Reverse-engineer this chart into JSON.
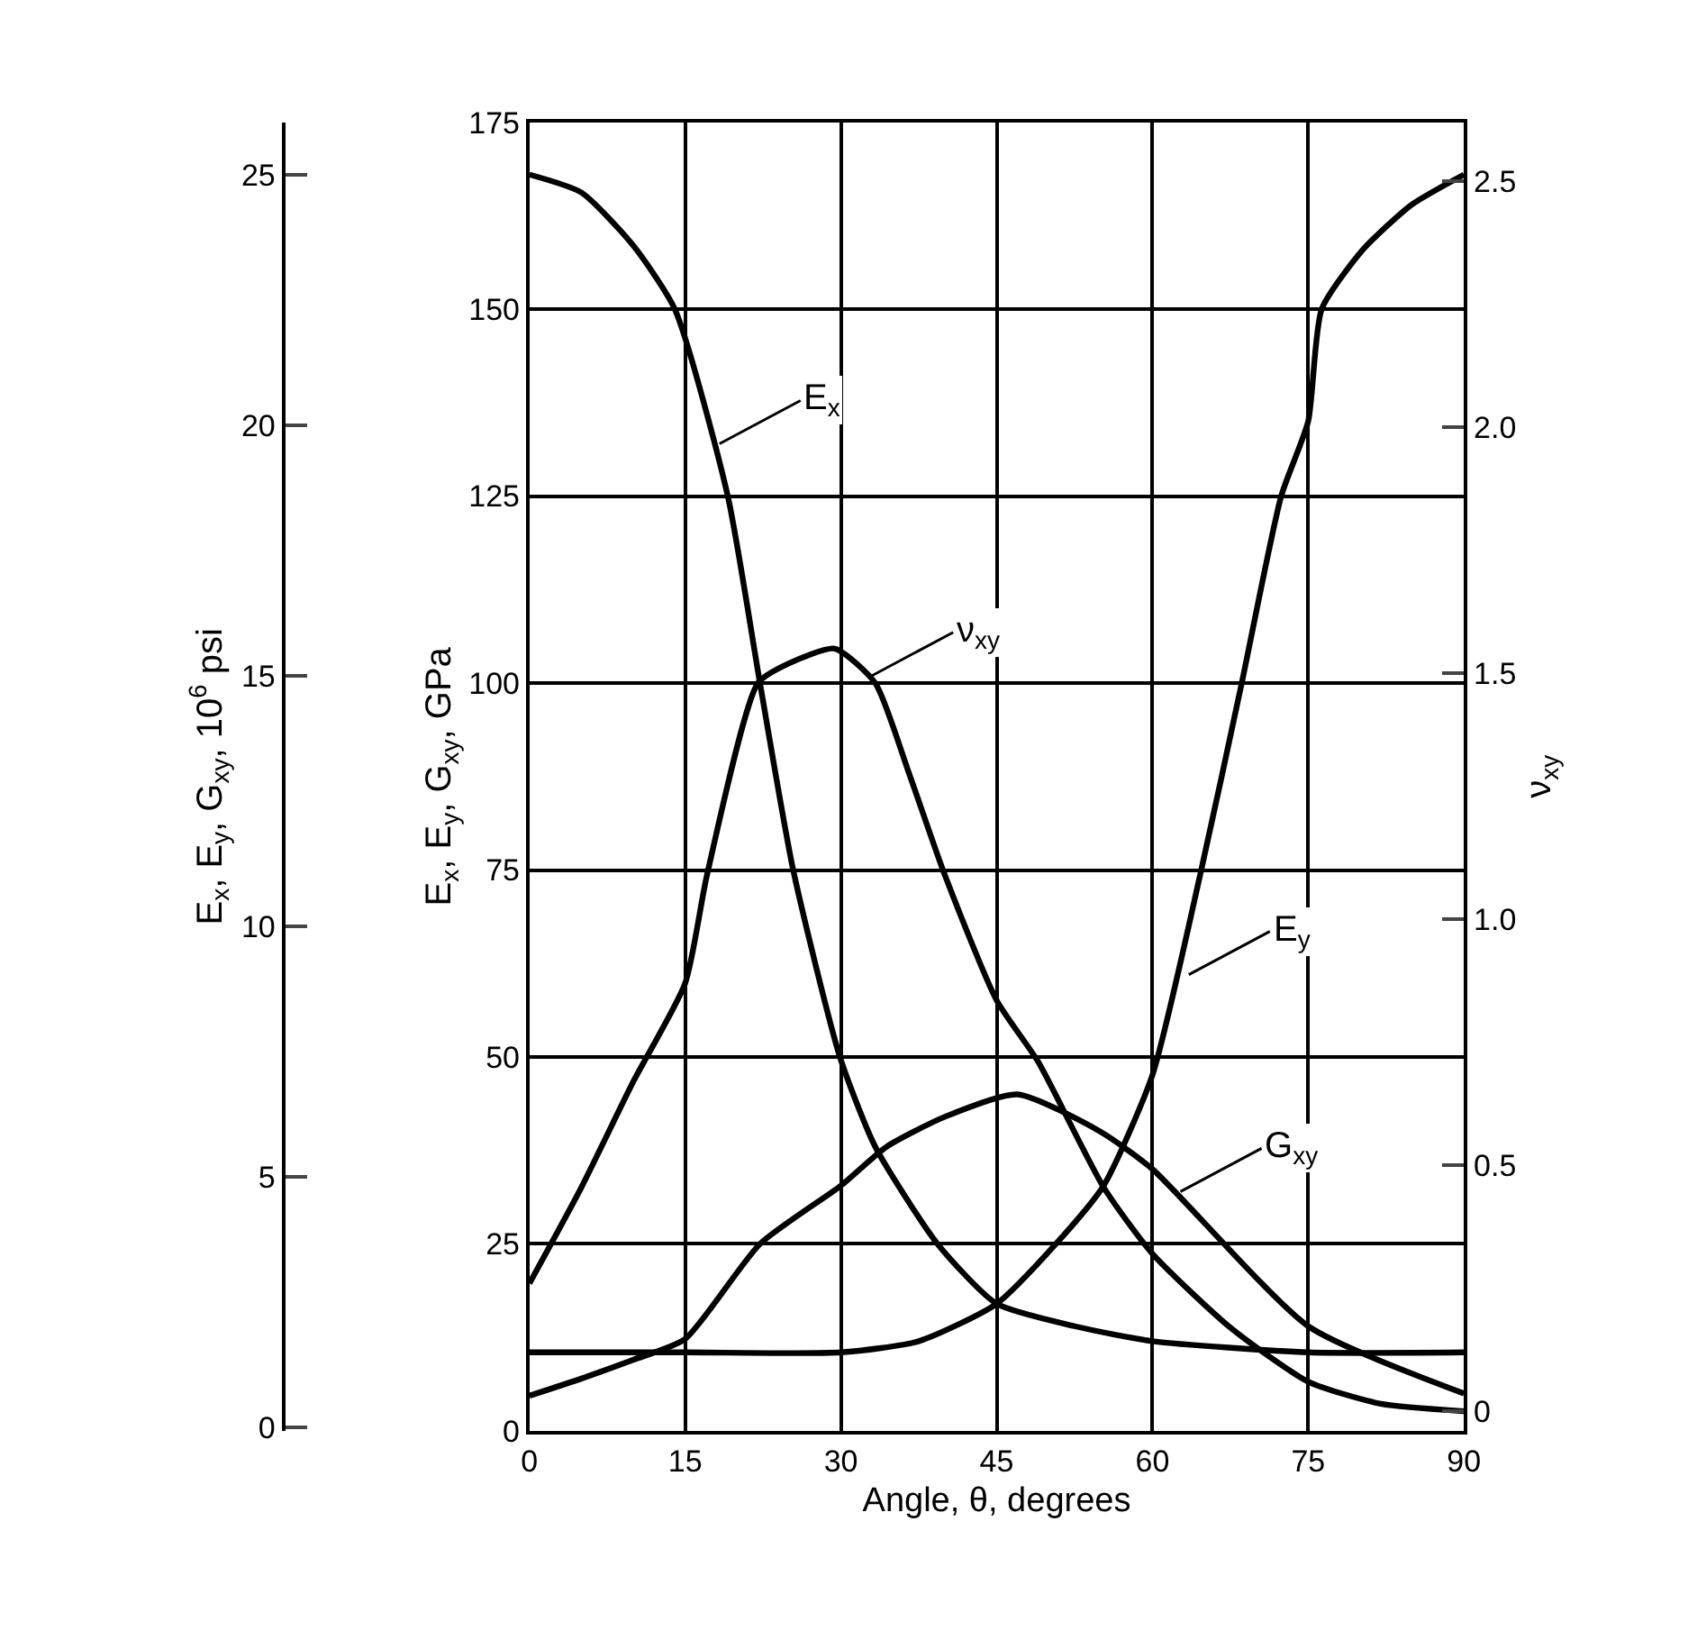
{
  "chart_data": {
    "type": "line",
    "xlabel": "Angle, θ, degrees",
    "ylabel": "E$_{x}$, E$_{y}$, G$_{xy}$, GPa",
    "y2label": "ν$_{xy}$",
    "y3label": "E$_{x}$, E$_{y}$, G$_{xy}$, 10$^{6}$ psi",
    "xlim": [
      0,
      90
    ],
    "xticks": [
      0,
      15,
      30,
      45,
      60,
      75,
      90
    ],
    "ylim": [
      0,
      175
    ],
    "yticks": [
      0,
      25,
      50,
      75,
      100,
      125,
      150,
      175
    ],
    "y2lim": [
      -0.04,
      2.62
    ],
    "y2ticks": [
      0,
      0.5,
      {
        "value": 1.0,
        "label": "1.0"
      },
      1.5,
      {
        "value": 2.0,
        "label": "2.0"
      },
      2.5
    ],
    "y3lim": [
      -0.07,
      26.05
    ],
    "y3ticks": [
      0,
      5,
      10,
      15,
      20,
      25
    ],
    "grid": true,
    "marker": "none",
    "line_style": "solid",
    "series": [
      {
        "color": "#000000",
        "x": [
          0,
          5,
          10,
          14,
          19.1,
          22.2,
          25.4,
          29.9,
          33.3,
          39.3,
          45,
          52.5,
          60,
          75,
          90
        ],
        "values": [
          168,
          165.6,
          158.5,
          150,
          125,
          100,
          75,
          50,
          38,
          25,
          17,
          14,
          12,
          10.5,
          10.5
        ]
      },
      {
        "color": "#000000",
        "x": [
          0,
          15,
          30,
          37.5,
          45,
          50.7,
          55.3,
          60,
          64.7,
          68.6,
          72.4,
          75,
          76.3,
          80.3,
          85,
          90
        ],
        "values": [
          10.5,
          10.5,
          10.5,
          12,
          17,
          25,
          32.8,
          47.6,
          75,
          100,
          125,
          135,
          150,
          158,
          164,
          168
        ]
      },
      {
        "color": "#000000",
        "x": [
          0,
          5,
          10,
          15,
          22.2,
          30,
          34.4,
          40,
          47,
          55,
          60,
          75,
          90
        ],
        "values": [
          4.7,
          7,
          9.5,
          12.3,
          25,
          32.8,
          38,
          42,
          45,
          40,
          35,
          14,
          5
        ]
      },
      {
        "color": "#000000",
        "axis": "y2",
        "x": [
          0,
          5,
          10,
          15,
          17.1,
          22,
          25,
          29.4,
          33.3,
          36.5,
          40,
          45,
          49,
          55.3,
          60,
          67.5,
          75,
          82,
          90
        ],
        "values": [
          0.26,
          0.455,
          0.67,
          0.87,
          1.09,
          1.48,
          1.52,
          1.55,
          1.48,
          1.3,
          1.09,
          0.835,
          0.71,
          0.455,
          0.32,
          0.17,
          0.06,
          0.015,
          0.0
        ]
      }
    ],
    "annotations": [
      {
        "text": "E$_{x}$",
        "x": 18.3,
        "y": 132
      },
      {
        "text": "ν$_{xy}$",
        "x": 33,
        "y": 101
      },
      {
        "text": "E$_{y}$",
        "x": 63.5,
        "y": 61
      },
      {
        "text": "G$_{xy}$",
        "x": 62.7,
        "y": 32
      }
    ]
  }
}
